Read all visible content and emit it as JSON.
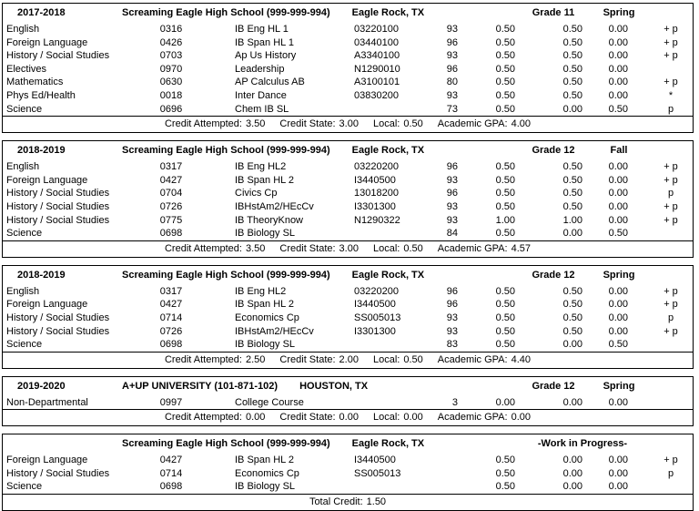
{
  "sections": [
    {
      "year": "2017-2018",
      "school": "Screaming Eagle High School (999-999-994)",
      "city": "Eagle Rock, TX",
      "grade": "Grade 11",
      "term": "Spring",
      "status": "",
      "rows": [
        {
          "dept": "English",
          "num": "0316",
          "title": "IB Eng HL 1",
          "code": "03220100",
          "grade": "93",
          "att": "0.50",
          "state": "0.50",
          "local": "0.00",
          "flags": "+ p"
        },
        {
          "dept": "Foreign Language",
          "num": "0426",
          "title": "IB Span HL 1",
          "code": "03440100",
          "grade": "96",
          "att": "0.50",
          "state": "0.50",
          "local": "0.00",
          "flags": "+ p"
        },
        {
          "dept": "History / Social Studies",
          "num": "0703",
          "title": "Ap Us History",
          "code": "A3340100",
          "grade": "93",
          "att": "0.50",
          "state": "0.50",
          "local": "0.00",
          "flags": "+ p"
        },
        {
          "dept": "Electives",
          "num": "0970",
          "title": "Leadership",
          "code": "N1290010",
          "grade": "96",
          "att": "0.50",
          "state": "0.50",
          "local": "0.00",
          "flags": ""
        },
        {
          "dept": "Mathematics",
          "num": "0630",
          "title": "AP Calculus AB",
          "code": "A3100101",
          "grade": "80",
          "att": "0.50",
          "state": "0.50",
          "local": "0.00",
          "flags": "+ p"
        },
        {
          "dept": "Phys Ed/Health",
          "num": "0018",
          "title": "Inter Dance",
          "code": "03830200",
          "grade": "93",
          "att": "0.50",
          "state": "0.50",
          "local": "0.00",
          "flags": "*"
        },
        {
          "dept": "Science",
          "num": "0696",
          "title": "Chem IB SL",
          "code": "",
          "grade": "73",
          "att": "0.50",
          "state": "0.00",
          "local": "0.50",
          "flags": "p"
        }
      ],
      "summary": [
        {
          "label": "Credit Attempted:",
          "value": "3.50"
        },
        {
          "label": "Credit State:",
          "value": "3.00"
        },
        {
          "label": "Local:",
          "value": "0.50"
        },
        {
          "label": "Academic GPA:",
          "value": "4.00"
        }
      ]
    },
    {
      "year": "2018-2019",
      "school": "Screaming Eagle High School (999-999-994)",
      "city": "Eagle Rock, TX",
      "grade": "Grade 12",
      "term": "Fall",
      "status": "",
      "rows": [
        {
          "dept": "English",
          "num": "0317",
          "title": "IB Eng HL2",
          "code": "03220200",
          "grade": "96",
          "att": "0.50",
          "state": "0.50",
          "local": "0.00",
          "flags": "+ p"
        },
        {
          "dept": "Foreign Language",
          "num": "0427",
          "title": "IB Span HL 2",
          "code": "I3440500",
          "grade": "93",
          "att": "0.50",
          "state": "0.50",
          "local": "0.00",
          "flags": "+ p"
        },
        {
          "dept": "History / Social Studies",
          "num": "0704",
          "title": "Civics Cp",
          "code": "13018200",
          "grade": "96",
          "att": "0.50",
          "state": "0.50",
          "local": "0.00",
          "flags": "p"
        },
        {
          "dept": "History / Social Studies",
          "num": "0726",
          "title": "IBHstAm2/HEcCv",
          "code": "I3301300",
          "grade": "93",
          "att": "0.50",
          "state": "0.50",
          "local": "0.00",
          "flags": "+ p"
        },
        {
          "dept": "History / Social Studies",
          "num": "0775",
          "title": "IB TheoryKnow",
          "code": "N1290322",
          "grade": "93",
          "att": "1.00",
          "state": "1.00",
          "local": "0.00",
          "flags": "+ p"
        },
        {
          "dept": "Science",
          "num": "0698",
          "title": "IB Biology SL",
          "code": "",
          "grade": "84",
          "att": "0.50",
          "state": "0.00",
          "local": "0.50",
          "flags": ""
        }
      ],
      "summary": [
        {
          "label": "Credit Attempted:",
          "value": "3.50"
        },
        {
          "label": "Credit State:",
          "value": "3.00"
        },
        {
          "label": "Local:",
          "value": "0.50"
        },
        {
          "label": "Academic GPA:",
          "value": "4.57"
        }
      ]
    },
    {
      "year": "2018-2019",
      "school": "Screaming Eagle High School (999-999-994)",
      "city": "Eagle Rock, TX",
      "grade": "Grade 12",
      "term": "Spring",
      "status": "",
      "rows": [
        {
          "dept": "English",
          "num": "0317",
          "title": "IB Eng HL2",
          "code": "03220200",
          "grade": "96",
          "att": "0.50",
          "state": "0.50",
          "local": "0.00",
          "flags": "+ p"
        },
        {
          "dept": "Foreign Language",
          "num": "0427",
          "title": "IB Span HL 2",
          "code": "I3440500",
          "grade": "96",
          "att": "0.50",
          "state": "0.50",
          "local": "0.00",
          "flags": "+ p"
        },
        {
          "dept": "History / Social Studies",
          "num": "0714",
          "title": "Economics Cp",
          "code": "SS005013",
          "grade": "93",
          "att": "0.50",
          "state": "0.50",
          "local": "0.00",
          "flags": "p"
        },
        {
          "dept": "History / Social Studies",
          "num": "0726",
          "title": "IBHstAm2/HEcCv",
          "code": "I3301300",
          "grade": "93",
          "att": "0.50",
          "state": "0.50",
          "local": "0.00",
          "flags": "+ p"
        },
        {
          "dept": "Science",
          "num": "0698",
          "title": "IB Biology SL",
          "code": "",
          "grade": "83",
          "att": "0.50",
          "state": "0.00",
          "local": "0.50",
          "flags": ""
        }
      ],
      "summary": [
        {
          "label": "Credit Attempted:",
          "value": "2.50"
        },
        {
          "label": "Credit State:",
          "value": "2.00"
        },
        {
          "label": "Local:",
          "value": "0.50"
        },
        {
          "label": "Academic GPA:",
          "value": "4.40"
        }
      ]
    },
    {
      "year": "2019-2020",
      "school": "A+UP UNIVERSITY (101-871-102)",
      "city": "HOUSTON, TX",
      "grade": "Grade 12",
      "term": "Spring",
      "status": "",
      "rows": [
        {
          "dept": "Non-Departmental",
          "num": "0997",
          "title": "College Course",
          "code": "",
          "grade": "3",
          "att": "0.00",
          "state": "0.00",
          "local": "0.00",
          "flags": ""
        }
      ],
      "summary": [
        {
          "label": "Credit Attempted:",
          "value": "0.00"
        },
        {
          "label": "Credit State:",
          "value": "0.00"
        },
        {
          "label": "Local:",
          "value": "0.00"
        },
        {
          "label": "Academic GPA:",
          "value": "0.00"
        }
      ]
    },
    {
      "year": "",
      "school": "Screaming Eagle High School (999-999-994)",
      "city": "Eagle Rock, TX",
      "grade": "",
      "term": "",
      "status": "-Work in Progress-",
      "rows": [
        {
          "dept": "Foreign Language",
          "num": "0427",
          "title": "IB Span HL 2",
          "code": "I3440500",
          "grade": "",
          "att": "0.50",
          "state": "0.00",
          "local": "0.00",
          "flags": "+ p"
        },
        {
          "dept": "History / Social Studies",
          "num": "0714",
          "title": "Economics Cp",
          "code": "SS005013",
          "grade": "",
          "att": "0.50",
          "state": "0.00",
          "local": "0.00",
          "flags": "p"
        },
        {
          "dept": "Science",
          "num": "0698",
          "title": "IB Biology SL",
          "code": "",
          "grade": "",
          "att": "0.50",
          "state": "0.00",
          "local": "0.00",
          "flags": ""
        }
      ],
      "summary": [
        {
          "label": "Total Credit:",
          "value": "1.50"
        }
      ]
    }
  ]
}
